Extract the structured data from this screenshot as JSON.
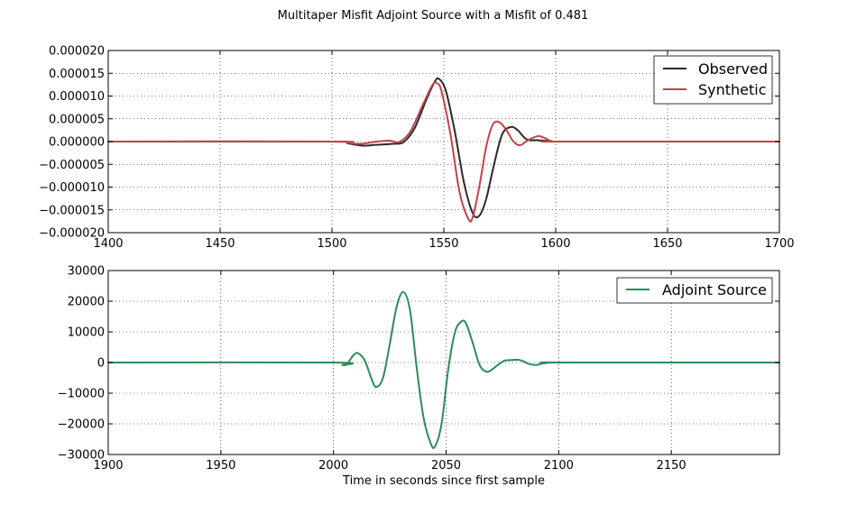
{
  "chart_data": [
    {
      "type": "line",
      "title": "Multitaper Misfit Adjoint Source with a Misfit of 0.481",
      "xlabel": "",
      "ylabel": "",
      "xlim": [
        1400,
        1700
      ],
      "ylim": [
        -2e-05,
        2e-05
      ],
      "grid": true,
      "legend_position": "top-right",
      "xticks": [
        1400,
        1450,
        1500,
        1550,
        1600,
        1650,
        1700
      ],
      "xtick_labels": [
        "1400",
        "1450",
        "1500",
        "1550",
        "1600",
        "1650",
        "1700"
      ],
      "yticks": [
        -2e-05,
        -1.5e-05,
        -1e-05,
        -5e-06,
        0,
        5e-06,
        1e-05,
        1.5e-05,
        2e-05
      ],
      "ytick_labels": [
        "−0.000020",
        "−0.000015",
        "−0.000010",
        "−0.000005",
        "0.000000",
        "0.000005",
        "0.000010",
        "0.000015",
        "0.000020"
      ],
      "series": [
        {
          "name": "Observed",
          "color": "#2a2a2a",
          "x": [
            1400,
            1500,
            1507,
            1514,
            1520,
            1527,
            1532,
            1537,
            1542,
            1546,
            1548,
            1551,
            1555,
            1559,
            1563,
            1566,
            1569,
            1572,
            1576,
            1580,
            1583,
            1587,
            1592,
            1598,
            1605,
            1700
          ],
          "y": [
            0,
            0,
            -4e-07,
            -9e-07,
            -7e-07,
            -5e-07,
            -1e-07,
            3e-06,
            9e-06,
            1.32e-05,
            1.37e-05,
            1.1e-05,
            2e-06,
            -9e-06,
            -1.58e-05,
            -1.62e-05,
            -1.25e-05,
            -6e-06,
            1.5e-06,
            3.2e-06,
            2.5e-06,
            5e-07,
            3e-07,
            1e-07,
            0,
            0
          ]
        },
        {
          "name": "Synthetic",
          "color": "#c0434a",
          "x": [
            1400,
            1500,
            1507,
            1513,
            1520,
            1526,
            1530,
            1535,
            1541,
            1545,
            1547,
            1549,
            1553,
            1557,
            1561,
            1563,
            1566,
            1569,
            1572,
            1575,
            1578,
            1581,
            1584,
            1588,
            1592,
            1595,
            1598,
            1602,
            1700
          ],
          "y": [
            0,
            0,
            -3e-07,
            -5e-07,
            0,
            2e-07,
            -1e-07,
            2.2e-06,
            8.5e-06,
            1.25e-05,
            1.28e-05,
            1.1e-05,
            1.5e-06,
            -1.1e-05,
            -1.7e-05,
            -1.65e-05,
            -9.5e-06,
            -1e-06,
            3.8e-06,
            4.2e-06,
            2.5e-06,
            1e-07,
            -8e-07,
            4e-07,
            1.2e-06,
            8e-07,
            1e-07,
            0,
            0
          ]
        }
      ]
    },
    {
      "type": "line",
      "title": "",
      "xlabel": "Time in seconds since first sample",
      "ylabel": "",
      "xlim": [
        1900,
        2198
      ],
      "ylim": [
        -30000,
        30000
      ],
      "grid": true,
      "legend_position": "top-right",
      "xticks": [
        1900,
        1950,
        2000,
        2050,
        2100,
        2150
      ],
      "xtick_labels": [
        "1900",
        "1950",
        "2000",
        "2050",
        "2100",
        "2150"
      ],
      "yticks": [
        -30000,
        -20000,
        -10000,
        0,
        10000,
        20000,
        30000
      ],
      "ytick_labels": [
        "−30000",
        "−20000",
        "−10000",
        "0",
        "10000",
        "20000",
        "30000"
      ],
      "series": [
        {
          "name": "Adjoint Source",
          "color": "#2e8b57",
          "x": [
            1900,
            2000,
            2004,
            2006,
            2009,
            2011,
            2014,
            2017,
            2019,
            2022,
            2025,
            2028,
            2031,
            2034,
            2037,
            2040,
            2043,
            2045,
            2048,
            2051,
            2054,
            2057,
            2059,
            2062,
            2065,
            2068,
            2070,
            2073,
            2076,
            2079,
            2082,
            2084,
            2087,
            2090,
            2093,
            2097,
            2100,
            2198
          ],
          "y": [
            0,
            0,
            -800,
            -500,
            2500,
            3000,
            500,
            -5500,
            -8000,
            -5000,
            6000,
            18000,
            23000,
            17000,
            -2000,
            -18000,
            -26000,
            -27500,
            -20000,
            -2000,
            10000,
            13500,
            12500,
            6000,
            -1000,
            -3000,
            -2500,
            -800,
            600,
            800,
            900,
            500,
            -500,
            -800,
            -300,
            0,
            0,
            0
          ]
        }
      ]
    }
  ]
}
